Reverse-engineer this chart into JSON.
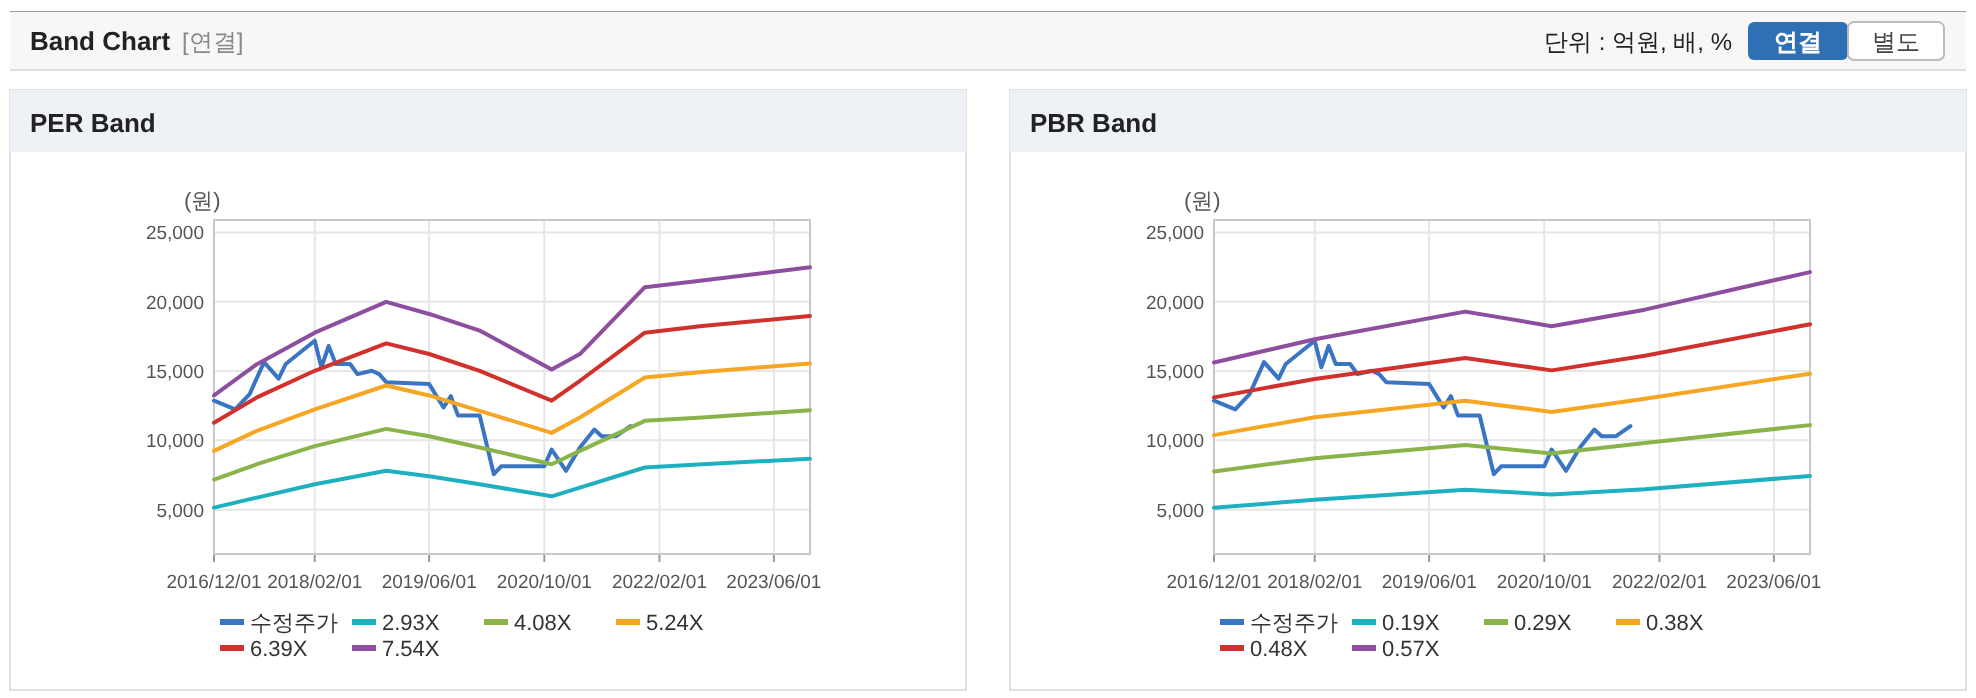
{
  "chart_data": [
    {
      "type": "line",
      "title": "PER Band",
      "ylabel": "(원)",
      "annotations": [
        "Band Chart",
        "[연결]",
        "단위 : 억원, 배, %",
        "연결",
        "별도"
      ],
      "xlim": [
        "2016-12-01",
        "2023-11-01"
      ],
      "xticks": [
        {
          "value": "2016-12-01",
          "label": "2016/12/01"
        },
        {
          "value": "2018-02-01",
          "label": "2018/02/01"
        },
        {
          "value": "2019-06-01",
          "label": "2019/06/01"
        },
        {
          "value": "2020-10-01",
          "label": "2020/10/01"
        },
        {
          "value": "2022-02-01",
          "label": "2022/02/01"
        },
        {
          "value": "2023-06-01",
          "label": "2023/06/01"
        }
      ],
      "ylim": [
        1800,
        25900
      ],
      "yticks": [
        {
          "value": 5000,
          "label": "5,000"
        },
        {
          "value": 10000,
          "label": "10,000"
        },
        {
          "value": 15000,
          "label": "15,000"
        },
        {
          "value": 20000,
          "label": "20,000"
        },
        {
          "value": 25000,
          "label": "25,000"
        }
      ],
      "grid": true,
      "legend": "bottom",
      "marker": "none",
      "line_style": "solid",
      "series": [
        {
          "name": "수정주가",
          "color": "#3a75c4",
          "x": [
            "2016-12",
            "2017-03",
            "2017-05",
            "2017-07",
            "2017-09",
            "2017-10",
            "2018-02",
            "2018-03",
            "2018-04",
            "2018-05",
            "2018-07",
            "2018-08",
            "2018-10",
            "2018-11",
            "2018-12",
            "2019-06",
            "2019-08",
            "2019-09",
            "2019-10",
            "2020-01",
            "2020-03",
            "2020-04",
            "2020-10",
            "2020-11",
            "2021-01",
            "2021-03",
            "2021-05",
            "2021-06",
            "2021-08",
            "2021-10"
          ],
          "values": [
            12860,
            12230,
            13340,
            15650,
            14450,
            15510,
            17190,
            15270,
            16810,
            15510,
            15510,
            14780,
            15020,
            14780,
            14200,
            14060,
            12370,
            13190,
            11800,
            11800,
            7560,
            8130,
            8130,
            9340,
            7800,
            9480,
            10780,
            10300,
            10300,
            11030
          ]
        },
        {
          "name": "2.93X",
          "color": "#1fb0c0",
          "x": [
            "2016-12",
            "2017-06",
            "2018-02",
            "2018-12",
            "2019-06",
            "2020-01",
            "2020-11",
            "2021-03",
            "2021-12",
            "2022-08",
            "2023-11"
          ],
          "values": [
            5150,
            5870,
            6830,
            7800,
            7410,
            6830,
            5960,
            6590,
            8040,
            8280,
            8670
          ]
        },
        {
          "name": "4.08X",
          "color": "#8ab34a",
          "x": [
            "2016-12",
            "2017-06",
            "2018-02",
            "2018-12",
            "2019-06",
            "2020-01",
            "2020-11",
            "2021-03",
            "2021-12",
            "2022-08",
            "2023-11"
          ],
          "values": [
            7170,
            8280,
            9580,
            10830,
            10300,
            9480,
            8280,
            9240,
            11410,
            11650,
            12180
          ]
        },
        {
          "name": "5.24X",
          "color": "#f5a623",
          "x": [
            "2016-12",
            "2017-06",
            "2018-02",
            "2018-12",
            "2019-06",
            "2020-01",
            "2020-11",
            "2021-03",
            "2021-12",
            "2022-08",
            "2023-11"
          ],
          "values": [
            9240,
            10690,
            12230,
            13960,
            13240,
            12130,
            10540,
            11650,
            14540,
            14930,
            15550
          ]
        },
        {
          "name": "6.39X",
          "color": "#d0312d",
          "x": [
            "2016-12",
            "2017-06",
            "2018-02",
            "2018-12",
            "2019-06",
            "2020-01",
            "2020-11",
            "2021-03",
            "2021-12",
            "2022-08",
            "2023-11"
          ],
          "values": [
            11270,
            13100,
            15020,
            17000,
            16230,
            15020,
            12860,
            14300,
            17770,
            18250,
            18980
          ]
        },
        {
          "name": "7.54X",
          "color": "#8e4ea0",
          "x": [
            "2016-12",
            "2017-06",
            "2018-02",
            "2018-12",
            "2019-06",
            "2020-01",
            "2020-11",
            "2021-03",
            "2021-12",
            "2022-08",
            "2023-11"
          ],
          "values": [
            13240,
            15500,
            17770,
            19990,
            19120,
            17920,
            15120,
            16230,
            21050,
            21530,
            22490
          ]
        }
      ]
    },
    {
      "type": "line",
      "title": "PBR Band",
      "ylabel": "(원)",
      "xlim": [
        "2016-12-01",
        "2023-11-01"
      ],
      "xticks": [
        {
          "value": "2016-12-01",
          "label": "2016/12/01"
        },
        {
          "value": "2018-02-01",
          "label": "2018/02/01"
        },
        {
          "value": "2019-06-01",
          "label": "2019/06/01"
        },
        {
          "value": "2020-10-01",
          "label": "2020/10/01"
        },
        {
          "value": "2022-02-01",
          "label": "2022/02/01"
        },
        {
          "value": "2023-06-01",
          "label": "2023/06/01"
        }
      ],
      "ylim": [
        1800,
        25900
      ],
      "yticks": [
        {
          "value": 5000,
          "label": "5,000"
        },
        {
          "value": 10000,
          "label": "10,000"
        },
        {
          "value": 15000,
          "label": "15,000"
        },
        {
          "value": 20000,
          "label": "20,000"
        },
        {
          "value": 25000,
          "label": "25,000"
        }
      ],
      "grid": true,
      "legend": "bottom",
      "marker": "none",
      "line_style": "solid",
      "series": [
        {
          "name": "수정주가",
          "color": "#3a75c4",
          "x": [
            "2016-12",
            "2017-03",
            "2017-05",
            "2017-07",
            "2017-09",
            "2017-10",
            "2018-02",
            "2018-03",
            "2018-04",
            "2018-05",
            "2018-07",
            "2018-08",
            "2018-10",
            "2018-11",
            "2018-12",
            "2019-06",
            "2019-08",
            "2019-09",
            "2019-10",
            "2020-01",
            "2020-03",
            "2020-04",
            "2020-10",
            "2020-11",
            "2021-01",
            "2021-03",
            "2021-05",
            "2021-06",
            "2021-08",
            "2021-10"
          ],
          "values": [
            12860,
            12230,
            13340,
            15650,
            14450,
            15510,
            17190,
            15270,
            16810,
            15510,
            15510,
            14780,
            15020,
            14780,
            14200,
            14060,
            12370,
            13190,
            11800,
            11800,
            7560,
            8130,
            8130,
            9340,
            7800,
            9480,
            10780,
            10300,
            10300,
            11030
          ]
        },
        {
          "name": "0.19X",
          "color": "#1fb0c0",
          "x": [
            "2016-12",
            "2018-02",
            "2019-11",
            "2020-11",
            "2021-12",
            "2023-11"
          ],
          "values": [
            5140,
            5710,
            6430,
            6100,
            6480,
            7430
          ]
        },
        {
          "name": "0.29X",
          "color": "#8ab34a",
          "x": [
            "2016-12",
            "2018-02",
            "2019-11",
            "2020-11",
            "2021-12",
            "2023-11"
          ],
          "values": [
            7760,
            8710,
            9670,
            9050,
            9810,
            11100
          ]
        },
        {
          "name": "0.38X",
          "color": "#f5a623",
          "x": [
            "2016-12",
            "2018-02",
            "2019-11",
            "2020-11",
            "2021-12",
            "2023-11"
          ],
          "values": [
            10380,
            11670,
            12860,
            12050,
            13000,
            14810
          ]
        },
        {
          "name": "0.48X",
          "color": "#d0312d",
          "x": [
            "2016-12",
            "2018-02",
            "2019-11",
            "2020-11",
            "2021-12",
            "2023-11"
          ],
          "values": [
            13100,
            14430,
            15950,
            15050,
            16100,
            18380
          ]
        },
        {
          "name": "0.57X",
          "color": "#8e4ea0",
          "x": [
            "2016-12",
            "2018-02",
            "2019-11",
            "2020-11",
            "2021-12",
            "2023-11"
          ],
          "values": [
            15620,
            17290,
            19290,
            18240,
            19430,
            22140
          ]
        }
      ]
    }
  ]
}
